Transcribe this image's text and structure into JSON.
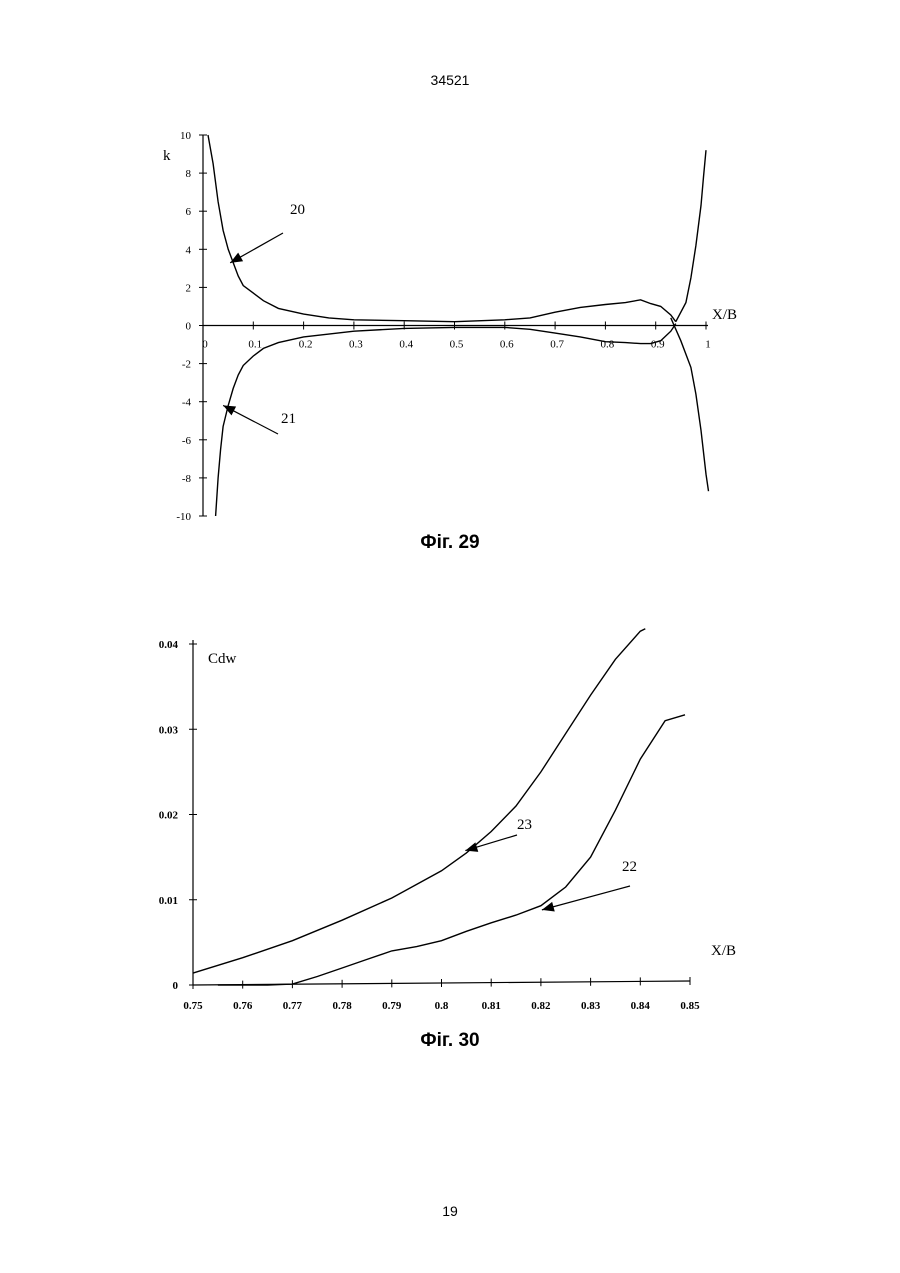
{
  "page": {
    "header_number": "34521",
    "page_number": "19"
  },
  "chart_data": [
    {
      "type": "line",
      "caption": "Фіг. 29",
      "xlabel": "X/B",
      "ylabel": "k",
      "xlim": [
        0,
        1
      ],
      "ylim": [
        -10,
        10
      ],
      "x_ticks": [
        "0",
        "0.1",
        "0.2",
        "0.3",
        "0.4",
        "0.5",
        "0.6",
        "0.7",
        "0.8",
        "0.9",
        "1"
      ],
      "y_ticks": [
        "10",
        "8",
        "6",
        "4",
        "2",
        "0",
        "-2",
        "-4",
        "-6",
        "-8",
        "-10"
      ],
      "series": [
        {
          "name": "20",
          "x": [
            0.01,
            0.02,
            0.03,
            0.04,
            0.05,
            0.06,
            0.07,
            0.08,
            0.1,
            0.12,
            0.15,
            0.2,
            0.25,
            0.3,
            0.4,
            0.5,
            0.6,
            0.65,
            0.7,
            0.75,
            0.8,
            0.84,
            0.87,
            0.89,
            0.91,
            0.93,
            0.94
          ],
          "y": [
            10,
            8.5,
            6.5,
            5.0,
            4.0,
            3.3,
            2.6,
            2.1,
            1.7,
            1.3,
            0.9,
            0.6,
            0.4,
            0.3,
            0.25,
            0.2,
            0.3,
            0.4,
            0.7,
            0.95,
            1.1,
            1.2,
            1.35,
            1.15,
            1.0,
            0.55,
            0.2
          ]
        },
        {
          "name": "21",
          "x": [
            0.025,
            0.03,
            0.035,
            0.04,
            0.05,
            0.06,
            0.07,
            0.08,
            0.1,
            0.12,
            0.15,
            0.2,
            0.25,
            0.3,
            0.4,
            0.5,
            0.6,
            0.65,
            0.7,
            0.75,
            0.8,
            0.84,
            0.87,
            0.89,
            0.91,
            0.93,
            0.94
          ],
          "y": [
            -10,
            -8.0,
            -6.5,
            -5.3,
            -4.2,
            -3.3,
            -2.6,
            -2.1,
            -1.6,
            -1.2,
            -0.9,
            -0.6,
            -0.45,
            -0.3,
            -0.15,
            -0.1,
            -0.1,
            -0.2,
            -0.4,
            -0.6,
            -0.85,
            -0.9,
            -0.95,
            -0.95,
            -0.8,
            -0.3,
            0.1
          ]
        },
        {
          "name": "",
          "x": [
            0.94,
            0.96,
            0.97,
            0.98,
            0.99,
            0.995,
            1.0
          ],
          "y": [
            0.2,
            1.2,
            2.5,
            4.2,
            6.3,
            7.8,
            9.2
          ]
        },
        {
          "name": "",
          "x": [
            0.93,
            0.95,
            0.97,
            0.98,
            0.99,
            1.0,
            1.005
          ],
          "y": [
            0.4,
            -0.8,
            -2.2,
            -3.6,
            -5.5,
            -7.8,
            -8.7
          ]
        }
      ],
      "annotations": [
        {
          "text": "20",
          "x": 0.06,
          "y": 3.5
        },
        {
          "text": "21",
          "x": 0.05,
          "y": -4.3
        }
      ]
    },
    {
      "type": "line",
      "caption": "Фіг. 30",
      "xlabel": "X/B",
      "ylabel": "Cdw",
      "xlim": [
        0.75,
        0.85
      ],
      "ylim": [
        0,
        0.04
      ],
      "x_ticks": [
        "0.75",
        "0.76",
        "0.77",
        "0.78",
        "0.79",
        "0.8",
        "0.81",
        "0.82",
        "0.83",
        "0.84",
        "0.85"
      ],
      "y_ticks": [
        "0.04",
        "0.03",
        "0.02",
        "0.01",
        "0"
      ],
      "series": [
        {
          "name": "23",
          "x": [
            0.75,
            0.76,
            0.77,
            0.78,
            0.79,
            0.8,
            0.805,
            0.81,
            0.815,
            0.82,
            0.825,
            0.83,
            0.835,
            0.84,
            0.841
          ],
          "y": [
            0.0014,
            0.0032,
            0.0052,
            0.0076,
            0.0102,
            0.0134,
            0.0155,
            0.018,
            0.021,
            0.025,
            0.0295,
            0.034,
            0.0382,
            0.0415,
            0.0418
          ]
        },
        {
          "name": "22",
          "x": [
            0.755,
            0.765,
            0.77,
            0.775,
            0.78,
            0.785,
            0.79,
            0.795,
            0.8,
            0.805,
            0.81,
            0.815,
            0.82,
            0.825,
            0.83,
            0.835,
            0.84,
            0.845,
            0.849
          ],
          "y": [
            0.0,
            0.0,
            0.0001,
            0.001,
            0.002,
            0.003,
            0.004,
            0.0045,
            0.0052,
            0.0063,
            0.0073,
            0.0082,
            0.0093,
            0.0115,
            0.015,
            0.0205,
            0.0265,
            0.031,
            0.0317
          ]
        }
      ],
      "annotations": [
        {
          "text": "23",
          "x": 0.805,
          "y": 0.016
        },
        {
          "text": "22",
          "x": 0.821,
          "y": 0.0094
        }
      ]
    }
  ]
}
